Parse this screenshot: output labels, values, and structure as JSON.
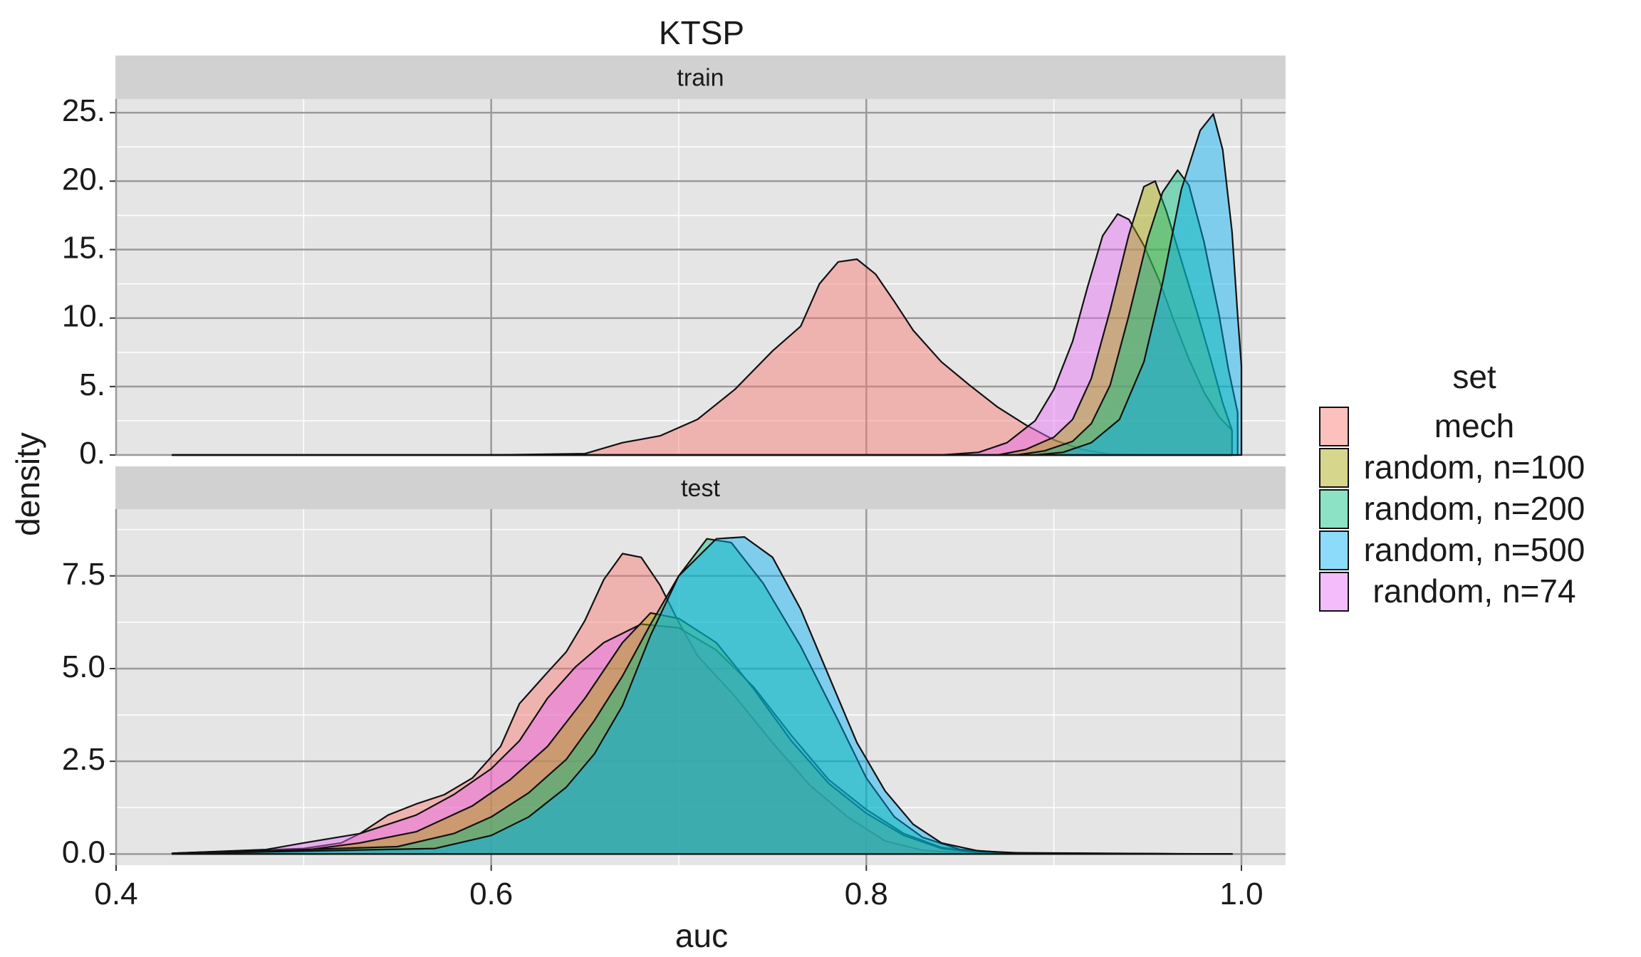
{
  "chart_data": {
    "type": "area",
    "title": "KTSP",
    "xlabel": "auc",
    "ylabel": "density",
    "xlim": [
      0.4,
      1.0
    ],
    "x_ticks": [
      "0.4",
      "0.6",
      "0.8",
      "1.0"
    ],
    "grid": true,
    "legend": {
      "title": "set",
      "position": "right",
      "entries": [
        "mech",
        "random, n=100",
        "random, n=200",
        "random, n=500",
        "random, n=74"
      ],
      "colors": [
        "#F8766D",
        "#A3A500",
        "#00BF7D",
        "#00B0F6",
        "#E76BF3"
      ]
    },
    "panels": [
      {
        "label": "train",
        "ylim": [
          0,
          26
        ],
        "y_ticks": [
          "0.",
          "5.",
          "10.",
          "15.",
          "20.",
          "25."
        ],
        "y_tick_values": [
          0,
          5,
          10,
          15,
          20,
          25
        ],
        "series": [
          {
            "name": "mech",
            "points": [
              [
                0.43,
                0
              ],
              [
                0.6,
                0
              ],
              [
                0.65,
                0.1
              ],
              [
                0.67,
                0.9
              ],
              [
                0.69,
                1.4
              ],
              [
                0.71,
                2.6
              ],
              [
                0.73,
                4.8
              ],
              [
                0.75,
                7.6
              ],
              [
                0.765,
                9.4
              ],
              [
                0.775,
                12.5
              ],
              [
                0.785,
                14.1
              ],
              [
                0.795,
                14.3
              ],
              [
                0.805,
                13.2
              ],
              [
                0.815,
                11.2
              ],
              [
                0.825,
                9.1
              ],
              [
                0.84,
                6.8
              ],
              [
                0.855,
                5.1
              ],
              [
                0.87,
                3.5
              ],
              [
                0.885,
                2.2
              ],
              [
                0.9,
                1.1
              ],
              [
                0.915,
                0.4
              ],
              [
                0.93,
                0.05
              ],
              [
                0.95,
                0
              ],
              [
                0.995,
                0
              ]
            ]
          },
          {
            "name": "random, n=74",
            "points": [
              [
                0.43,
                0
              ],
              [
                0.84,
                0
              ],
              [
                0.86,
                0.2
              ],
              [
                0.875,
                0.9
              ],
              [
                0.89,
                2.5
              ],
              [
                0.9,
                4.8
              ],
              [
                0.91,
                8.3
              ],
              [
                0.918,
                12.3
              ],
              [
                0.926,
                16.0
              ],
              [
                0.934,
                17.6
              ],
              [
                0.94,
                17.2
              ],
              [
                0.948,
                15.3
              ],
              [
                0.956,
                12.8
              ],
              [
                0.964,
                9.8
              ],
              [
                0.972,
                7.0
              ],
              [
                0.98,
                4.6
              ],
              [
                0.988,
                2.8
              ],
              [
                0.995,
                1.8
              ]
            ]
          },
          {
            "name": "random, n=100",
            "points": [
              [
                0.43,
                0
              ],
              [
                0.87,
                0
              ],
              [
                0.885,
                0.4
              ],
              [
                0.9,
                1.3
              ],
              [
                0.91,
                2.6
              ],
              [
                0.92,
                5.6
              ],
              [
                0.93,
                10.6
              ],
              [
                0.94,
                16.1
              ],
              [
                0.948,
                19.6
              ],
              [
                0.954,
                20.0
              ],
              [
                0.96,
                17.8
              ],
              [
                0.968,
                14.2
              ],
              [
                0.976,
                10.6
              ],
              [
                0.984,
                6.8
              ],
              [
                0.99,
                3.8
              ],
              [
                0.995,
                1.8
              ]
            ]
          },
          {
            "name": "random, n=200",
            "points": [
              [
                0.43,
                0
              ],
              [
                0.88,
                0
              ],
              [
                0.895,
                0.3
              ],
              [
                0.91,
                1.0
              ],
              [
                0.92,
                2.3
              ],
              [
                0.93,
                5.1
              ],
              [
                0.94,
                10.2
              ],
              [
                0.95,
                15.8
              ],
              [
                0.958,
                19.2
              ],
              [
                0.966,
                20.8
              ],
              [
                0.972,
                19.7
              ],
              [
                0.98,
                15.6
              ],
              [
                0.988,
                10.3
              ],
              [
                0.993,
                6.3
              ],
              [
                0.998,
                3.1
              ]
            ]
          },
          {
            "name": "random, n=500",
            "points": [
              [
                0.43,
                0
              ],
              [
                0.89,
                0
              ],
              [
                0.905,
                0.2
              ],
              [
                0.92,
                0.9
              ],
              [
                0.935,
                2.6
              ],
              [
                0.948,
                6.8
              ],
              [
                0.958,
                12.6
              ],
              [
                0.968,
                19.4
              ],
              [
                0.978,
                23.7
              ],
              [
                0.985,
                24.9
              ],
              [
                0.99,
                22.3
              ],
              [
                0.995,
                16.3
              ],
              [
                0.998,
                10.2
              ],
              [
                1.0,
                6.5
              ]
            ]
          }
        ]
      },
      {
        "label": "test",
        "ylim": [
          -0.3,
          9.3
        ],
        "y_ticks": [
          "0.0",
          "2.5",
          "5.0",
          "7.5"
        ],
        "y_tick_values": [
          0,
          2.5,
          5,
          7.5
        ],
        "series": [
          {
            "name": "mech",
            "points": [
              [
                0.43,
                0.02
              ],
              [
                0.5,
                0.15
              ],
              [
                0.52,
                0.3
              ],
              [
                0.53,
                0.55
              ],
              [
                0.545,
                1.05
              ],
              [
                0.56,
                1.35
              ],
              [
                0.575,
                1.6
              ],
              [
                0.59,
                2.05
              ],
              [
                0.605,
                2.9
              ],
              [
                0.615,
                4.05
              ],
              [
                0.63,
                4.9
              ],
              [
                0.64,
                5.45
              ],
              [
                0.65,
                6.3
              ],
              [
                0.66,
                7.4
              ],
              [
                0.67,
                8.1
              ],
              [
                0.68,
                8.0
              ],
              [
                0.69,
                7.25
              ],
              [
                0.7,
                6.25
              ],
              [
                0.71,
                5.35
              ],
              [
                0.73,
                4.25
              ],
              [
                0.75,
                3.0
              ],
              [
                0.77,
                1.85
              ],
              [
                0.79,
                1.0
              ],
              [
                0.81,
                0.35
              ],
              [
                0.83,
                0.1
              ],
              [
                0.86,
                0.01
              ],
              [
                0.995,
                0
              ]
            ]
          },
          {
            "name": "random, n=74",
            "points": [
              [
                0.43,
                0.02
              ],
              [
                0.48,
                0.12
              ],
              [
                0.5,
                0.3
              ],
              [
                0.53,
                0.55
              ],
              [
                0.56,
                1.05
              ],
              [
                0.58,
                1.6
              ],
              [
                0.6,
                2.3
              ],
              [
                0.615,
                3.05
              ],
              [
                0.63,
                4.2
              ],
              [
                0.645,
                5.05
              ],
              [
                0.66,
                5.7
              ],
              [
                0.68,
                6.2
              ],
              [
                0.7,
                6.1
              ],
              [
                0.72,
                5.5
              ],
              [
                0.74,
                4.5
              ],
              [
                0.76,
                3.2
              ],
              [
                0.78,
                2.0
              ],
              [
                0.8,
                1.2
              ],
              [
                0.82,
                0.55
              ],
              [
                0.84,
                0.18
              ],
              [
                0.86,
                0.04
              ],
              [
                0.995,
                0
              ]
            ]
          },
          {
            "name": "random, n=100",
            "points": [
              [
                0.43,
                0.01
              ],
              [
                0.5,
                0.1
              ],
              [
                0.53,
                0.3
              ],
              [
                0.56,
                0.6
              ],
              [
                0.59,
                1.3
              ],
              [
                0.61,
                2.0
              ],
              [
                0.63,
                2.9
              ],
              [
                0.65,
                4.2
              ],
              [
                0.67,
                5.7
              ],
              [
                0.685,
                6.5
              ],
              [
                0.7,
                6.35
              ],
              [
                0.72,
                5.7
              ],
              [
                0.74,
                4.45
              ],
              [
                0.76,
                3.05
              ],
              [
                0.78,
                1.9
              ],
              [
                0.8,
                1.1
              ],
              [
                0.82,
                0.5
              ],
              [
                0.84,
                0.15
              ],
              [
                0.86,
                0.03
              ],
              [
                0.995,
                0
              ]
            ]
          },
          {
            "name": "random, n=200",
            "points": [
              [
                0.43,
                0.01
              ],
              [
                0.55,
                0.2
              ],
              [
                0.58,
                0.55
              ],
              [
                0.6,
                1.0
              ],
              [
                0.62,
                1.65
              ],
              [
                0.64,
                2.55
              ],
              [
                0.655,
                3.6
              ],
              [
                0.67,
                4.8
              ],
              [
                0.685,
                6.2
              ],
              [
                0.7,
                7.5
              ],
              [
                0.715,
                8.5
              ],
              [
                0.728,
                8.4
              ],
              [
                0.745,
                7.3
              ],
              [
                0.765,
                5.6
              ],
              [
                0.785,
                3.6
              ],
              [
                0.8,
                2.05
              ],
              [
                0.815,
                1.0
              ],
              [
                0.83,
                0.45
              ],
              [
                0.85,
                0.12
              ],
              [
                0.88,
                0.02
              ],
              [
                0.995,
                0
              ]
            ]
          },
          {
            "name": "random, n=500",
            "points": [
              [
                0.43,
                0.01
              ],
              [
                0.57,
                0.15
              ],
              [
                0.6,
                0.5
              ],
              [
                0.62,
                1.0
              ],
              [
                0.64,
                1.8
              ],
              [
                0.655,
                2.7
              ],
              [
                0.67,
                4.0
              ],
              [
                0.685,
                5.9
              ],
              [
                0.7,
                7.5
              ],
              [
                0.72,
                8.5
              ],
              [
                0.735,
                8.55
              ],
              [
                0.75,
                8.0
              ],
              [
                0.765,
                6.6
              ],
              [
                0.78,
                4.8
              ],
              [
                0.795,
                3.0
              ],
              [
                0.81,
                1.7
              ],
              [
                0.825,
                0.8
              ],
              [
                0.84,
                0.3
              ],
              [
                0.86,
                0.08
              ],
              [
                0.89,
                0.01
              ],
              [
                0.995,
                0
              ]
            ]
          }
        ]
      }
    ]
  }
}
